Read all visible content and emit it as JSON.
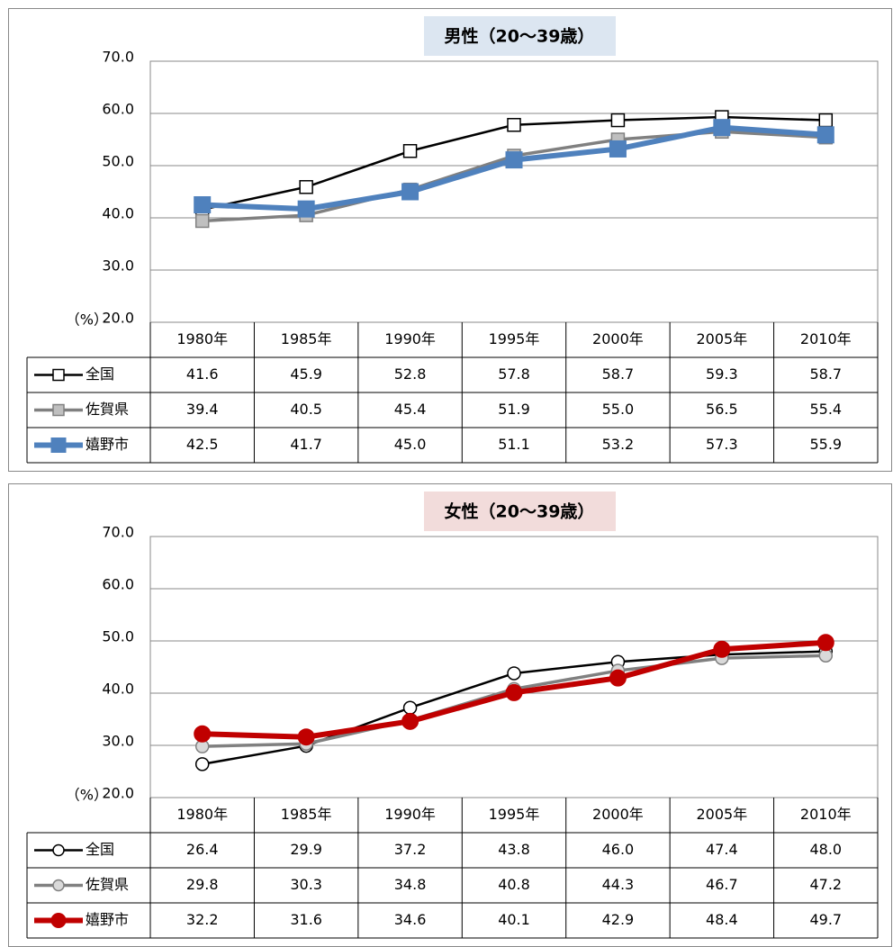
{
  "chart_data": [
    {
      "type": "line",
      "title": "男性（20～39歳）",
      "title_background": "#dce6f1",
      "y_label": "（%）",
      "categories": [
        "1980年",
        "1985年",
        "1990年",
        "1995年",
        "2000年",
        "2005年",
        "2010年"
      ],
      "ylim": [
        20,
        70
      ],
      "yticks": [
        {
          "value": 20,
          "label": "20.0"
        },
        {
          "value": 30,
          "label": "30.0"
        },
        {
          "value": 40,
          "label": "40.0"
        },
        {
          "value": 50,
          "label": "50.0"
        },
        {
          "value": 60,
          "label": "60.0"
        },
        {
          "value": 70,
          "label": "70.0"
        }
      ],
      "grid": true,
      "marker": "square",
      "series": [
        {
          "name": "全国",
          "color": "#000000",
          "marker_fill": "#ffffff",
          "values": [
            41.6,
            45.9,
            52.8,
            57.8,
            58.7,
            59.3,
            58.7
          ],
          "value_labels": [
            "41.6",
            "45.9",
            "52.8",
            "57.8",
            "58.7",
            "59.3",
            "58.7"
          ]
        },
        {
          "name": "佐賀県",
          "color": "#808080",
          "marker_fill": "#bfbfbf",
          "values": [
            39.4,
            40.5,
            45.4,
            51.9,
            55.0,
            56.5,
            55.4
          ],
          "value_labels": [
            "39.4",
            "40.5",
            "45.4",
            "51.9",
            "55.0",
            "56.5",
            "55.4"
          ]
        },
        {
          "name": "嬉野市",
          "color": "#4f81bd",
          "marker_fill": "#4f81bd",
          "values": [
            42.5,
            41.7,
            45.0,
            51.1,
            53.2,
            57.3,
            55.9
          ],
          "value_labels": [
            "42.5",
            "41.7",
            "45.0",
            "51.1",
            "53.2",
            "57.3",
            "55.9"
          ]
        }
      ]
    },
    {
      "type": "line",
      "title": "女性（20～39歳）",
      "title_background": "#f2dcdb",
      "y_label": "（%）",
      "categories": [
        "1980年",
        "1985年",
        "1990年",
        "1995年",
        "2000年",
        "2005年",
        "2010年"
      ],
      "ylim": [
        20,
        70
      ],
      "yticks": [
        {
          "value": 20,
          "label": "20.0"
        },
        {
          "value": 30,
          "label": "30.0"
        },
        {
          "value": 40,
          "label": "40.0"
        },
        {
          "value": 50,
          "label": "50.0"
        },
        {
          "value": 60,
          "label": "60.0"
        },
        {
          "value": 70,
          "label": "70.0"
        }
      ],
      "grid": true,
      "marker": "circle",
      "series": [
        {
          "name": "全国",
          "color": "#000000",
          "marker_fill": "#ffffff",
          "values": [
            26.4,
            29.9,
            37.2,
            43.8,
            46.0,
            47.4,
            48.0
          ],
          "value_labels": [
            "26.4",
            "29.9",
            "37.2",
            "43.8",
            "46.0",
            "47.4",
            "48.0"
          ]
        },
        {
          "name": "佐賀県",
          "color": "#808080",
          "marker_fill": "#d9d9d9",
          "values": [
            29.8,
            30.3,
            34.8,
            40.8,
            44.3,
            46.7,
            47.2
          ],
          "value_labels": [
            "29.8",
            "30.3",
            "34.8",
            "40.8",
            "44.3",
            "46.7",
            "47.2"
          ]
        },
        {
          "name": "嬉野市",
          "color": "#c00000",
          "marker_fill": "#c00000",
          "values": [
            32.2,
            31.6,
            34.6,
            40.1,
            42.9,
            48.4,
            49.7
          ],
          "value_labels": [
            "32.2",
            "31.6",
            "34.6",
            "40.1",
            "42.9",
            "48.4",
            "49.7"
          ]
        }
      ]
    }
  ]
}
